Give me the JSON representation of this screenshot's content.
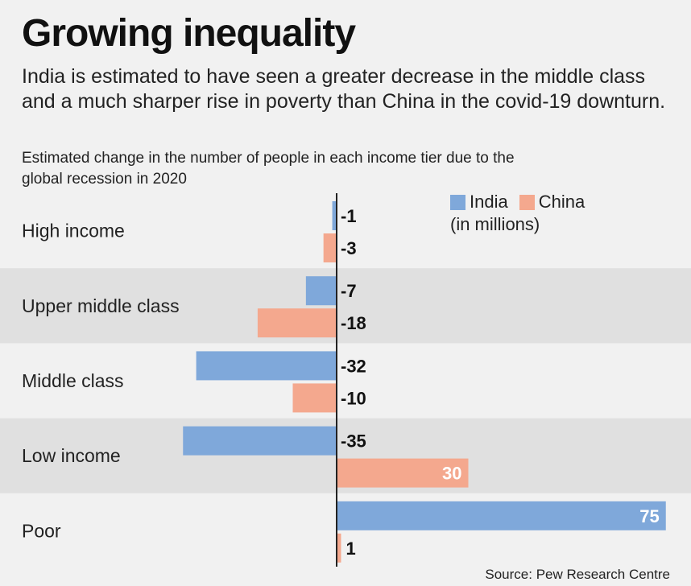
{
  "title": "Growing inequality",
  "subtitle": "India is estimated to have seen a greater decrease in the middle class and a much sharper rise in poverty than China in the covid-19 downturn.",
  "description": "Estimated change in the number of people in each income tier due to the global recession in 2020",
  "source": "Source: Pew Research Centre",
  "legend": {
    "items": [
      {
        "label": "India",
        "color": "#7fa8da"
      },
      {
        "label": "China",
        "color": "#f4a88e"
      }
    ],
    "note": "(in millions)"
  },
  "colors": {
    "band": "#e0e0e0",
    "axis": "#222222"
  },
  "chart_data": {
    "type": "bar",
    "orientation": "horizontal",
    "categories": [
      "High income",
      "Upper middle class",
      "Middle class",
      "Low income",
      "Poor"
    ],
    "series": [
      {
        "name": "India",
        "color": "#7fa8da",
        "values": [
          -1,
          -7,
          -32,
          -35,
          75
        ]
      },
      {
        "name": "China",
        "color": "#f4a88e",
        "values": [
          -3,
          -18,
          -10,
          30,
          1
        ]
      }
    ],
    "data_labels": [
      [
        "-1",
        "-7",
        "-32",
        "-35",
        "75"
      ],
      [
        "-3",
        "-18",
        "-10",
        "30",
        "1"
      ]
    ],
    "unit": "(in millions)",
    "grid": false,
    "legend_position": "top-right"
  }
}
